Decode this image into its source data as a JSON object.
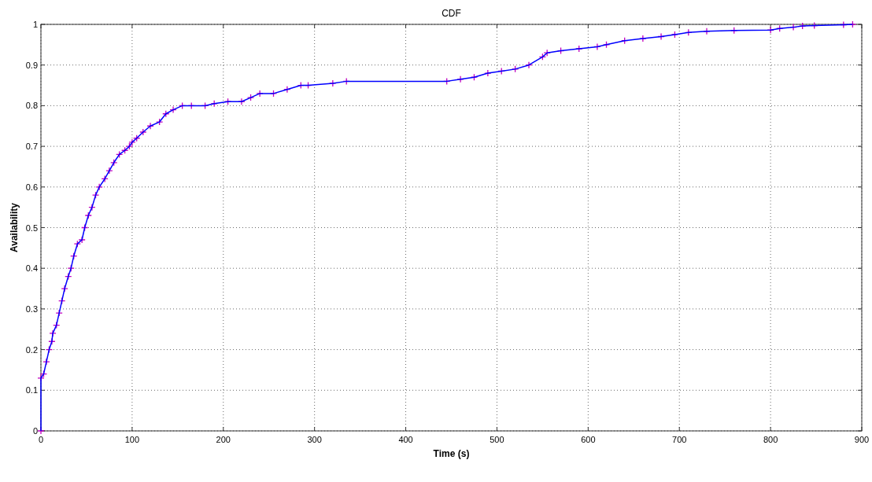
{
  "chart_data": {
    "type": "line",
    "title": "CDF",
    "xlabel": "Time (s)",
    "ylabel": "Availability",
    "xlim": [
      0,
      900
    ],
    "ylim": [
      0,
      1
    ],
    "xticks": [
      0,
      100,
      200,
      300,
      400,
      500,
      600,
      700,
      800,
      900
    ],
    "yticks": [
      0,
      0.1,
      0.2,
      0.3,
      0.4,
      0.5,
      0.6,
      0.7,
      0.8,
      0.9,
      1
    ],
    "grid": true,
    "x": [
      0,
      0,
      3,
      6,
      9,
      12,
      13,
      17,
      20,
      23,
      26,
      30,
      33,
      36,
      40,
      45,
      48,
      52,
      56,
      60,
      64,
      70,
      75,
      80,
      86,
      92,
      97,
      100,
      105,
      112,
      120,
      130,
      137,
      145,
      155,
      165,
      180,
      190,
      205,
      220,
      230,
      240,
      255,
      270,
      285,
      293,
      320,
      335,
      445,
      460,
      475,
      490,
      505,
      520,
      535,
      550,
      555,
      570,
      590,
      610,
      620,
      640,
      660,
      680,
      695,
      710,
      730,
      760,
      800,
      810,
      825,
      835,
      848,
      880,
      890
    ],
    "series": [
      {
        "type": "line",
        "color": "#0000ff",
        "marker": "none",
        "line_style": "solid",
        "values": [
          0,
          0.13,
          0.14,
          0.17,
          0.2,
          0.22,
          0.24,
          0.26,
          0.29,
          0.32,
          0.35,
          0.38,
          0.4,
          0.43,
          0.46,
          0.47,
          0.5,
          0.53,
          0.55,
          0.58,
          0.6,
          0.62,
          0.64,
          0.66,
          0.68,
          0.69,
          0.7,
          0.71,
          0.72,
          0.735,
          0.75,
          0.76,
          0.78,
          0.79,
          0.8,
          0.8,
          0.8,
          0.805,
          0.81,
          0.81,
          0.82,
          0.83,
          0.83,
          0.84,
          0.85,
          0.85,
          0.855,
          0.86,
          0.86,
          0.865,
          0.87,
          0.88,
          0.885,
          0.89,
          0.9,
          0.92,
          0.93,
          0.935,
          0.94,
          0.945,
          0.95,
          0.96,
          0.965,
          0.97,
          0.975,
          0.98,
          0.983,
          0.985,
          0.986,
          0.99,
          0.993,
          0.996,
          0.997,
          0.999,
          1
        ]
      },
      {
        "type": "scatter",
        "color": "#c000c0",
        "marker": "cross",
        "values": [
          0,
          0.13,
          0.14,
          0.17,
          0.2,
          0.22,
          0.24,
          0.26,
          0.29,
          0.32,
          0.35,
          0.38,
          0.4,
          0.43,
          0.46,
          0.47,
          0.5,
          0.53,
          0.55,
          0.58,
          0.6,
          0.62,
          0.64,
          0.66,
          0.68,
          0.69,
          0.7,
          0.71,
          0.72,
          0.735,
          0.75,
          0.76,
          0.78,
          0.79,
          0.8,
          0.8,
          0.8,
          0.805,
          0.81,
          0.81,
          0.82,
          0.83,
          0.83,
          0.84,
          0.85,
          0.85,
          0.855,
          0.86,
          0.86,
          0.865,
          0.87,
          0.88,
          0.885,
          0.89,
          0.9,
          0.92,
          0.93,
          0.935,
          0.94,
          0.945,
          0.95,
          0.96,
          0.965,
          0.97,
          0.975,
          0.98,
          0.983,
          0.985,
          0.986,
          0.99,
          0.993,
          0.996,
          0.997,
          0.999,
          1
        ]
      }
    ]
  }
}
